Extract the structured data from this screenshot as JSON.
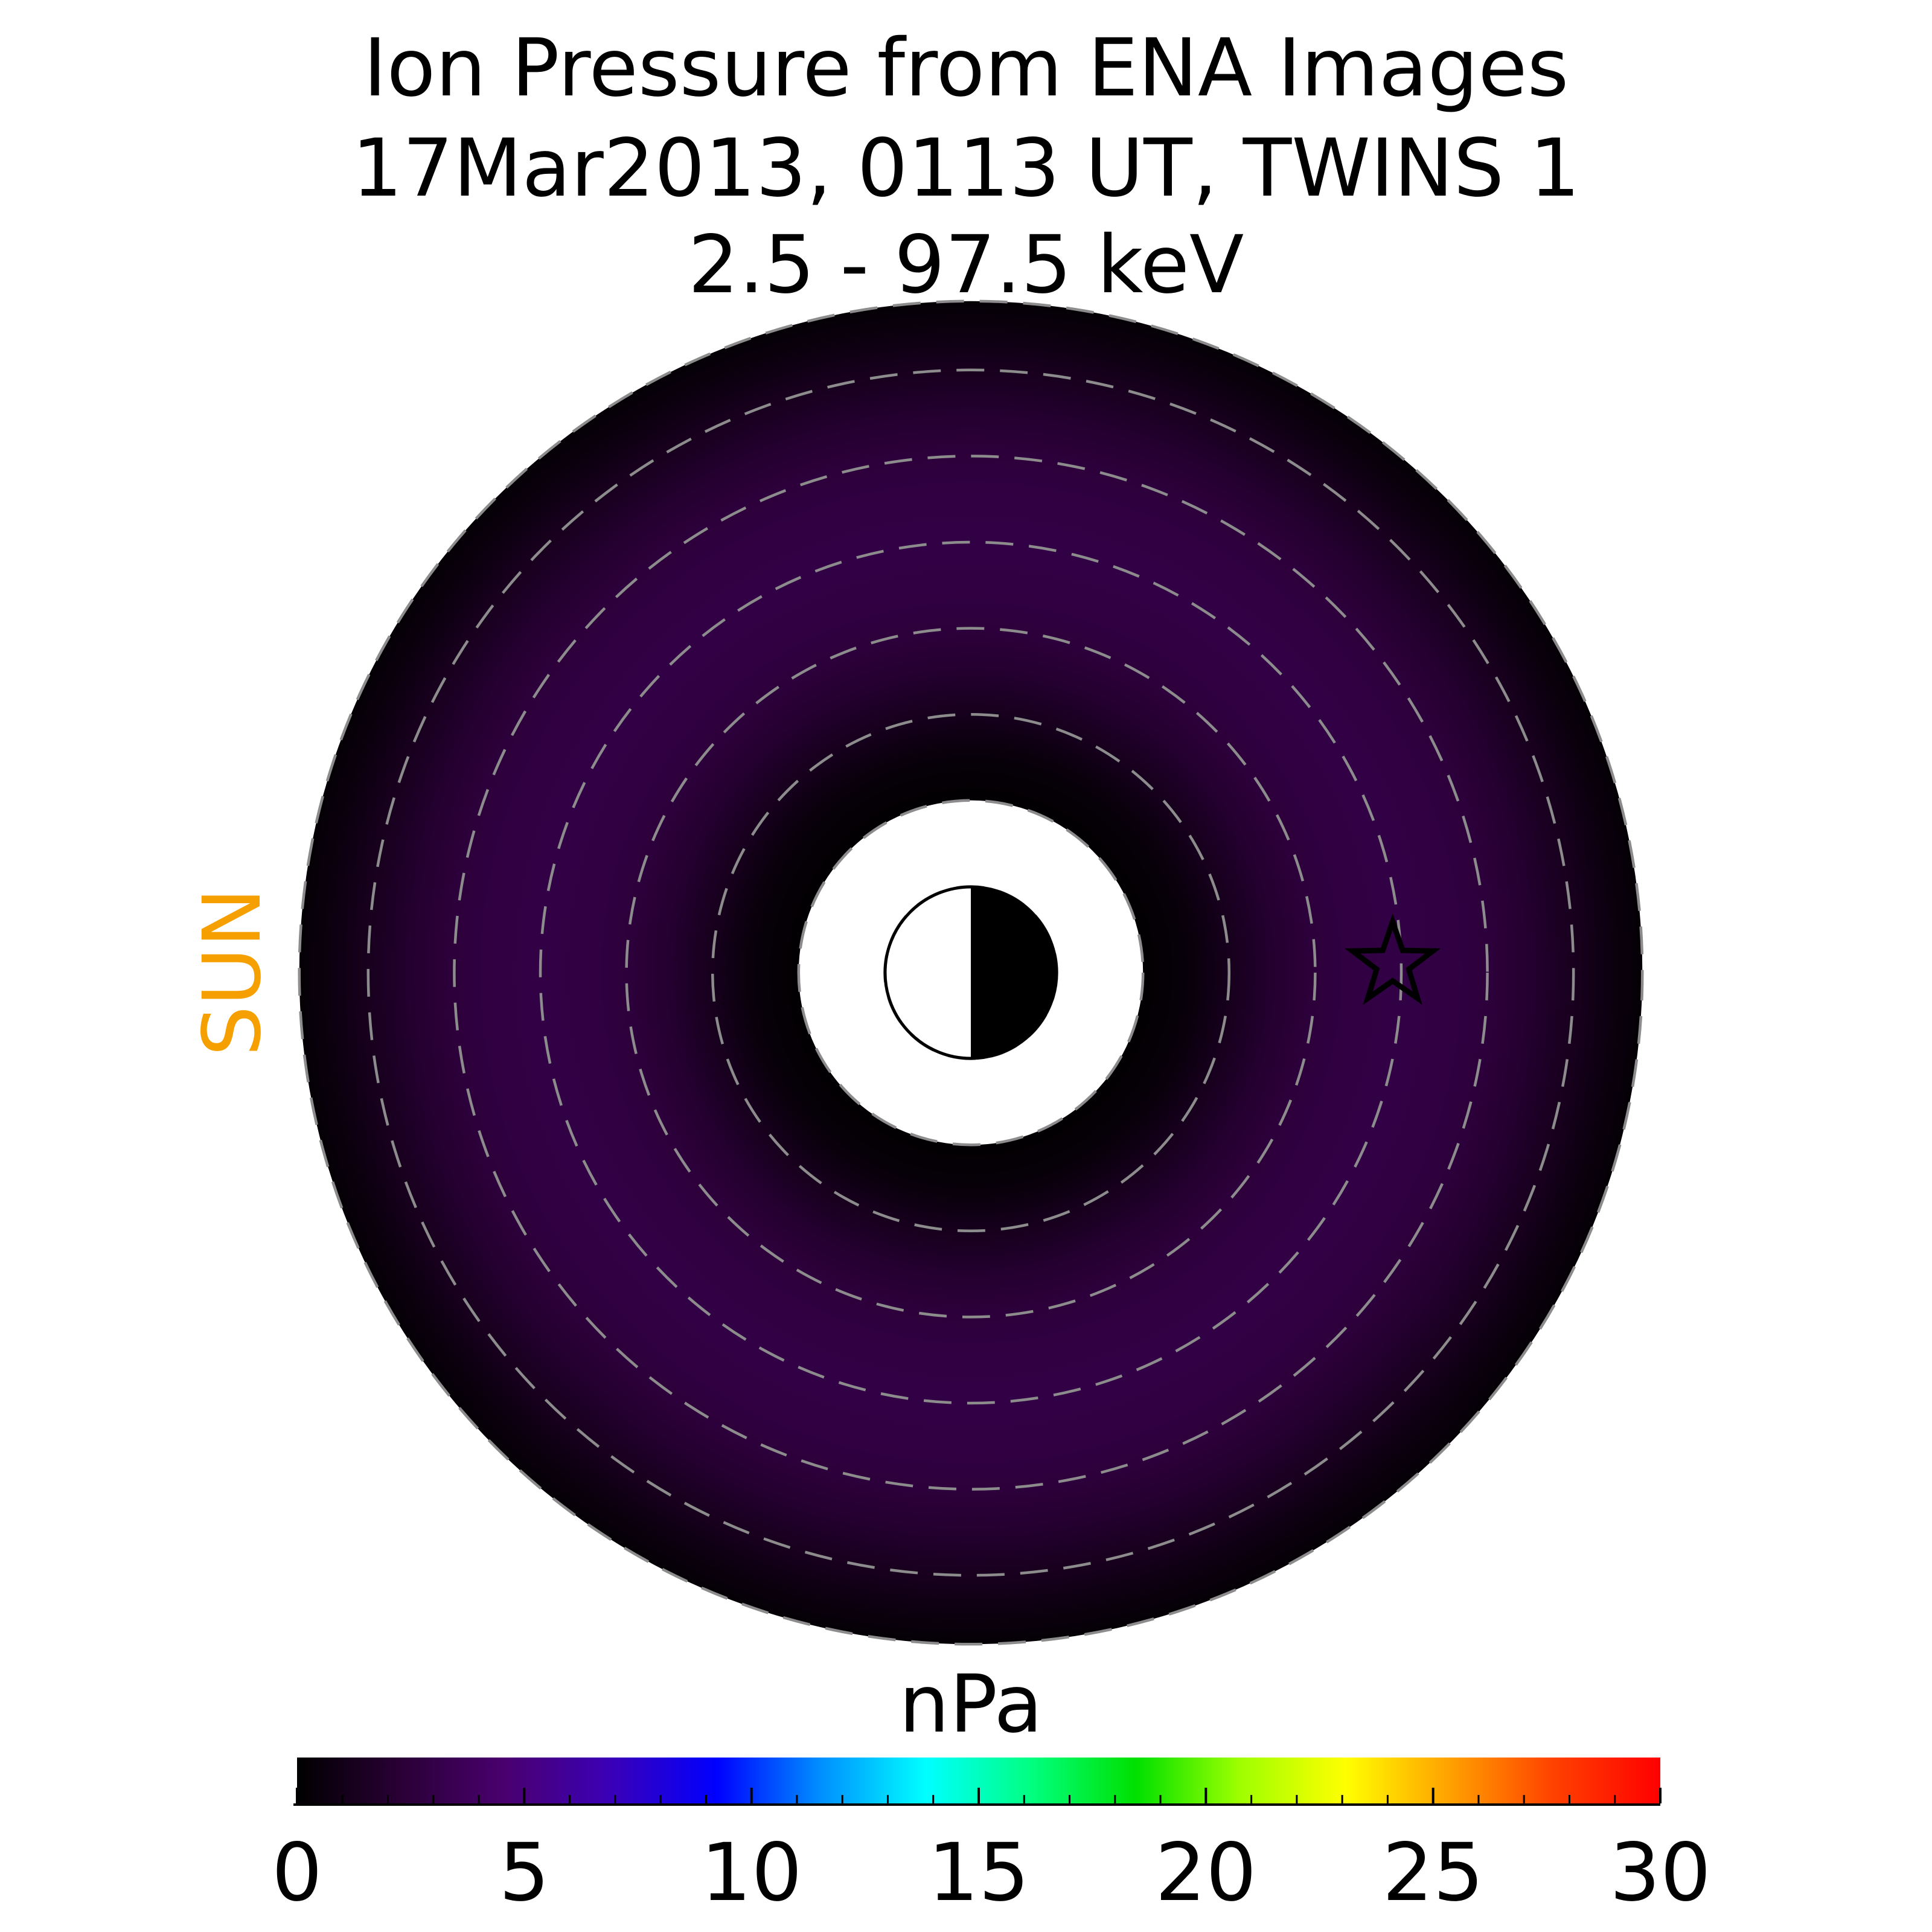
{
  "title_lines": [
    "Ion Pressure from  ENA Images",
    "17Mar2013, 0113 UT,  TWINS 1",
    "2.5 - 97.5 keV"
  ],
  "sun_label": "SUN",
  "colors": {
    "sun": "#f5a000",
    "dashed_rings": "#8c8c8c",
    "empty_background": "#ffffff",
    "colormap": [
      "#000000",
      "#2a0036",
      "#4a0070",
      "#3a00b8",
      "#0000ff",
      "#0090ff",
      "#00ffff",
      "#00ff80",
      "#00e000",
      "#a0ff00",
      "#ffff00",
      "#ffa000",
      "#ff4000",
      "#ff0000"
    ]
  },
  "chart_data": {
    "type": "heatmap",
    "projection": "polar equatorial plane, sun to the left",
    "title": "Ion Pressure from  ENA Images",
    "subtitle": [
      "17Mar2013, 0113 UT,  TWINS 1",
      "2.5 - 97.5 keV"
    ],
    "unit": "nPa",
    "color_range": [
      0,
      30
    ],
    "colorbar_ticks": [
      0,
      5,
      10,
      15,
      20,
      25,
      30
    ],
    "dashed_ring_radii_re": [
      1,
      2,
      3,
      4,
      5,
      6,
      7
    ],
    "inner_boundary_re": 2,
    "outer_boundary_re": 7.8,
    "radial_pressure_profile": {
      "r_re": [
        2.0,
        2.5,
        3.0,
        3.5,
        4.0,
        4.5,
        5.0,
        5.5,
        6.0,
        6.5,
        7.0,
        7.5,
        7.8
      ],
      "pressure_npa": [
        0.1,
        0.4,
        1.2,
        2.0,
        2.5,
        2.8,
        2.9,
        2.8,
        2.5,
        2.0,
        1.3,
        0.6,
        0.2
      ]
    },
    "earth_marker": "half-lit Earth at center (day side left)",
    "spacecraft_marker": {
      "symbol": "star",
      "x_re": -4.9,
      "y_re": 0.1
    }
  }
}
